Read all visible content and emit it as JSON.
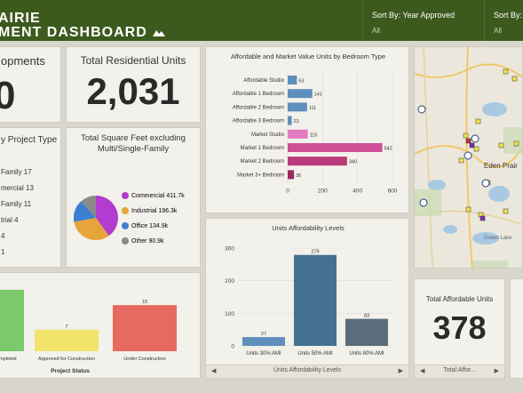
{
  "header": {
    "title_line1": "AIRIE",
    "title_line2": "MENT DASHBOARD",
    "sort1_label": "Sort By: Year Approved",
    "sort1_value": "All",
    "sort2_label": "Sort By: P",
    "sort2_value": "All"
  },
  "kpi_developments": {
    "title": "opments",
    "value": "0"
  },
  "kpi_units": {
    "title": "Total Residential Units",
    "value": "2,031"
  },
  "project_type": {
    "title": "y Project Type",
    "items": [
      "Family 17",
      "mercial 13",
      "Family 11",
      "trial 4",
      "4",
      "1"
    ]
  },
  "square_feet": {
    "title": "Total Square Feet excluding Multi/Single-Family",
    "legend": [
      {
        "label": "Commercial 411.7k",
        "color": "#b23bd0"
      },
      {
        "label": "Industrial 196.3k",
        "color": "#e8a43a"
      },
      {
        "label": "Office 134.9k",
        "color": "#3c7fd0"
      },
      {
        "label": "Other 90.9k",
        "color": "#8a8a8a"
      }
    ]
  },
  "chart_data": [
    {
      "type": "bar",
      "title": "Affordable and Market Value Units by Bedroom Type",
      "orientation": "horizontal",
      "categories": [
        "Affordable Studio",
        "Affordable 1 Bedroom",
        "Affordable 2 Bedroom",
        "Affordable 3 Bedroom",
        "Market Studio",
        "Market 1 Bedroom",
        "Market 2 Bedroom",
        "Market 3+ Bedroom"
      ],
      "values": [
        53,
        141,
        111,
        23,
        115,
        542,
        340,
        36
      ],
      "colors": [
        "#5f8fbd",
        "#5f8fbd",
        "#5f8fbd",
        "#5f8fbd",
        "#e07bbf",
        "#cf4f97",
        "#b93a7a",
        "#9a2a60"
      ],
      "xlim": [
        0,
        600
      ],
      "xticks": [
        "0",
        "200",
        "400",
        "600"
      ]
    },
    {
      "type": "bar",
      "title": "Units Affordability Levels",
      "categories": [
        "Units 30% AMI",
        "Units 50% AMI",
        "Units 80% AMI"
      ],
      "values": [
        27,
        279,
        83
      ],
      "colors": [
        "#5f8fbd",
        "#46708f",
        "#5a6d7a"
      ],
      "ylim": [
        0,
        300
      ],
      "yticks": [
        "0",
        "100",
        "200",
        "300"
      ],
      "footer": "Units Affordability Levels"
    },
    {
      "type": "bar",
      "title": "",
      "categories": [
        "mpleted",
        "Approved for Construction",
        "Under Construction"
      ],
      "values": [
        20,
        7,
        15
      ],
      "colors": [
        "#7bc96a",
        "#f2e36b",
        "#e66a5f"
      ],
      "xlabel": "Project Status"
    }
  ],
  "affordable_units": {
    "title": "Total Affordable Units",
    "value": "378",
    "footer": "Total Affor..."
  },
  "map": {
    "town_label": "Eden Prair",
    "lake_label": "Green Lake"
  }
}
